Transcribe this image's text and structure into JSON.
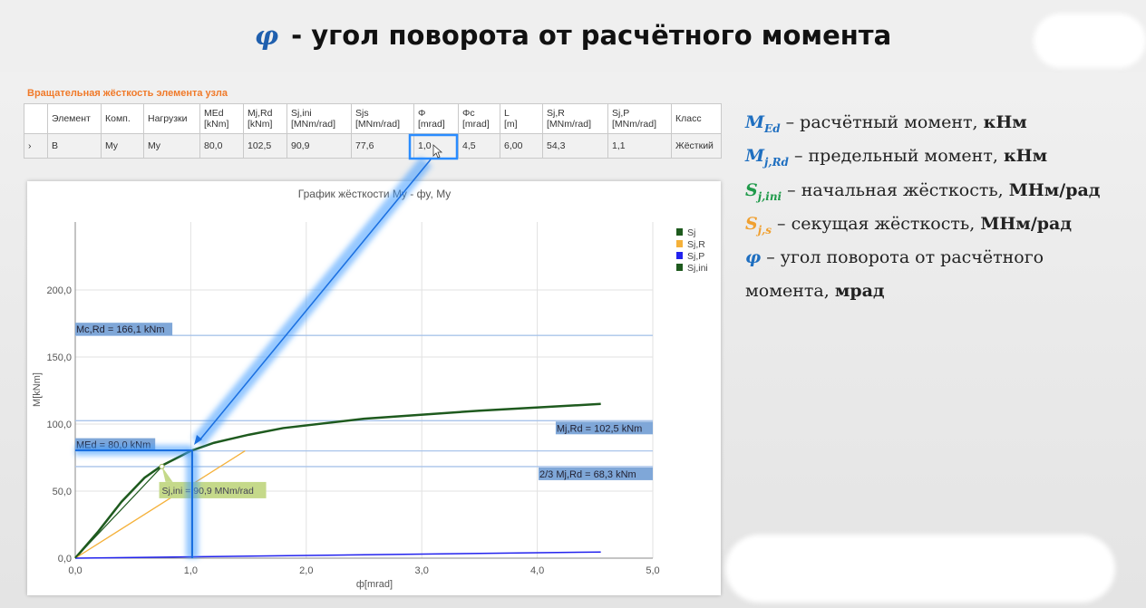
{
  "header": {
    "symbol": "φ",
    "title": "- угол поворота от расчётного момента"
  },
  "table": {
    "caption": "Вращательная жёсткость элемента узла",
    "columns": [
      [
        "",
        ""
      ],
      [
        "Элемент",
        ""
      ],
      [
        "Комп.",
        ""
      ],
      [
        "Нагрузки",
        ""
      ],
      [
        "MEd",
        "[kNm]"
      ],
      [
        "Mj,Rd",
        "[kNm]"
      ],
      [
        "Sj,ini",
        "[MNm/rad]"
      ],
      [
        "Sjs",
        "[MNm/rad]"
      ],
      [
        "Φ",
        "[mrad]"
      ],
      [
        "Φc",
        "[mrad]"
      ],
      [
        "L",
        "[m]"
      ],
      [
        "Sj,R",
        "[MNm/rad]"
      ],
      [
        "Sj,P",
        "[MNm/rad]"
      ],
      [
        "Класс",
        ""
      ]
    ],
    "rows": [
      [
        "›",
        "B",
        "My",
        "My",
        "80,0",
        "102,5",
        "90,9",
        "77,6",
        "1,0",
        "4,5",
        "6,00",
        "54,3",
        "1,1",
        "Жёсткий"
      ]
    ],
    "selected_cell": "Φ"
  },
  "chart_data": {
    "type": "line",
    "title": "График жёсткости My - фy, My",
    "xlabel": "ф[mrad]",
    "ylabel": "M[kNm]",
    "xlim": [
      0,
      5
    ],
    "ylim": [
      0,
      240
    ],
    "xticks": [
      "0,0",
      "1,0",
      "2,0",
      "3,0",
      "4,0",
      "5,0"
    ],
    "yticks": [
      "0,0",
      "50,0",
      "100,0",
      "150,0",
      "200,0"
    ],
    "grid": true,
    "legend": "top-right",
    "series": [
      {
        "name": "Sj",
        "color": "#1e5a1e",
        "x": [
          0,
          0.2,
          0.4,
          0.6,
          0.75,
          1.0,
          1.2,
          1.5,
          1.8,
          2.5,
          3.5,
          4.55
        ],
        "y": [
          0,
          20,
          42,
          60,
          69,
          80,
          86,
          92,
          97,
          104,
          110,
          115
        ]
      },
      {
        "name": "Sj,R",
        "color": "#f5b13a",
        "x": [
          0,
          1.47
        ],
        "y": [
          0,
          80
        ]
      },
      {
        "name": "Sj,P",
        "color": "#2222ee",
        "x": [
          0,
          4.55
        ],
        "y": [
          0,
          4.6
        ]
      },
      {
        "name": "Sj,ini",
        "color": "#1e5a1e",
        "x": [
          0,
          0.75
        ],
        "y": [
          0,
          68.3
        ]
      }
    ],
    "hlines": [
      {
        "value": 166.1,
        "label": "Mc,Rd = 166,1 kNm",
        "side": "left"
      },
      {
        "value": 102.5,
        "label": "Mj,Rd = 102,5 kNm",
        "side": "right"
      },
      {
        "value": 80.0,
        "label": "MEd = 80,0 kNm",
        "side": "left"
      },
      {
        "value": 68.3,
        "label": "2/3 Mj,Rd = 68,3 kNm",
        "side": "right"
      }
    ],
    "annotation": {
      "label": "Sj,ini = 90,9 MNm/rad",
      "x": 0.75,
      "y": 68.3
    }
  },
  "notes": [
    {
      "sym": "M",
      "sub": "Ed",
      "color": "#1f6fc0",
      "text": " – расчётный момент, ",
      "unit": "кНм"
    },
    {
      "sym": "M",
      "sub": "j,Rd",
      "color": "#1f6fc0",
      "text": " – предельный момент, ",
      "unit": "кНм"
    },
    {
      "sym": "S",
      "sub": "j,ini",
      "color": "#1f9a4a",
      "text": " – начальная жёсткость, ",
      "unit": "МНм/рад"
    },
    {
      "sym": "S",
      "sub": "j,s",
      "color": "#f0a030",
      "text": " – секущая жёсткость, ",
      "unit": "МНм/рад"
    },
    {
      "sym": "φ",
      "sub": "",
      "color": "#1f6fc0",
      "text": " – угол поворота от расчётного момента, ",
      "unit": "мрад"
    }
  ],
  "colors": {
    "highlight": "#2a8cff",
    "caption": "#f07a2a",
    "label_bg": "#7fa7d8",
    "annotation_bg": "#c5d98a"
  }
}
